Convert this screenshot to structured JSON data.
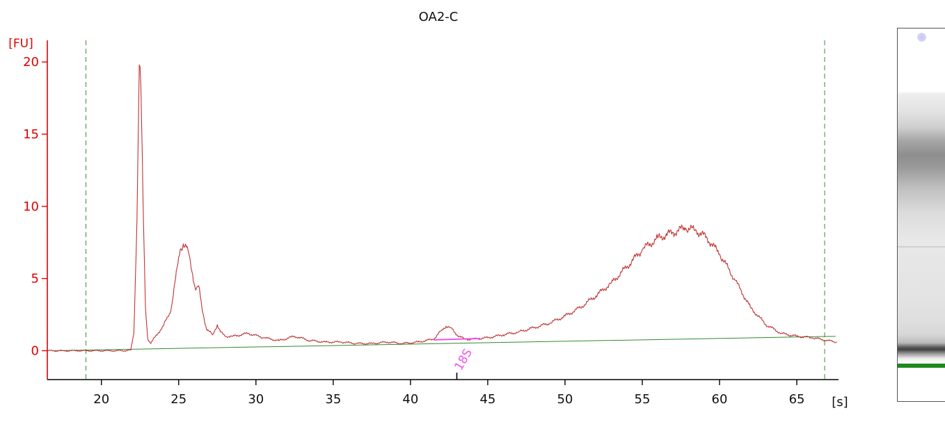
{
  "chart_data": {
    "type": "line",
    "title": "OA2-C",
    "ylabel": "[FU]",
    "xlabel": "[s]",
    "xlim": [
      16.5,
      67.7
    ],
    "ylim": [
      -2,
      21.5
    ],
    "xticks": [
      20,
      25,
      30,
      35,
      40,
      45,
      50,
      55,
      60,
      65
    ],
    "yticks": [
      0,
      5,
      10,
      15,
      20
    ],
    "grid": false,
    "colors": {
      "axis": "#e00000",
      "trace": "#c03232",
      "baseline": "#2e8b2e",
      "window": "#3a8a3a",
      "annotation": "#ee55ee"
    },
    "window_lines": [
      19.0,
      66.8
    ],
    "baseline": {
      "start": [
        16.8,
        0.0
      ],
      "end": [
        67.5,
        1.0
      ]
    },
    "series": [
      {
        "x": [
          16.5,
          17.5,
          18.5,
          19.5,
          20.5,
          21.5,
          21.9,
          22.1,
          22.3,
          22.45,
          22.55,
          22.7,
          22.85,
          23.0,
          23.2,
          23.5,
          24.0,
          24.5,
          24.8,
          25.1,
          25.3,
          25.6,
          25.9,
          26.1,
          26.3,
          26.5,
          26.8,
          27.2,
          27.5,
          27.7,
          28.0,
          28.5,
          29.5,
          30.5,
          31.5,
          32.5,
          33.5,
          34.5,
          35.5,
          36.5,
          37.5,
          38.5,
          39.5,
          40.5,
          41.5,
          42.0,
          42.3,
          42.6,
          43.0,
          43.5,
          44.0,
          45.0,
          46.0,
          47.0,
          48.0,
          49.0,
          50.0,
          51.0,
          52.0,
          53.0,
          54.0,
          55.0,
          56.0,
          57.0,
          57.8,
          58.5,
          59.2,
          60.0,
          61.0,
          62.0,
          63.0,
          64.0,
          65.0,
          66.0,
          67.0,
          67.6
        ],
        "y": [
          0.0,
          0.0,
          0.0,
          0.0,
          0.0,
          0.0,
          0.05,
          1.2,
          9.0,
          19.8,
          18.5,
          10.0,
          3.0,
          0.8,
          0.5,
          1.0,
          1.7,
          2.8,
          5.0,
          7.0,
          7.4,
          7.0,
          5.3,
          4.2,
          4.5,
          3.0,
          1.5,
          1.1,
          1.8,
          1.3,
          1.0,
          1.0,
          1.2,
          0.9,
          0.7,
          1.0,
          0.7,
          0.6,
          0.6,
          0.5,
          0.5,
          0.6,
          0.5,
          0.6,
          0.8,
          1.4,
          1.7,
          1.6,
          1.1,
          0.8,
          0.8,
          0.9,
          1.1,
          1.3,
          1.6,
          1.9,
          2.4,
          3.0,
          3.8,
          4.7,
          5.8,
          7.0,
          7.8,
          8.2,
          8.5,
          8.3,
          7.8,
          6.7,
          4.9,
          3.0,
          1.8,
          1.2,
          1.0,
          0.9,
          0.7,
          0.6
        ]
      }
    ],
    "annotations": [
      {
        "label": "18S",
        "x": 43.0,
        "peak_from": 41.5,
        "peak_to": 44.5
      }
    ]
  }
}
